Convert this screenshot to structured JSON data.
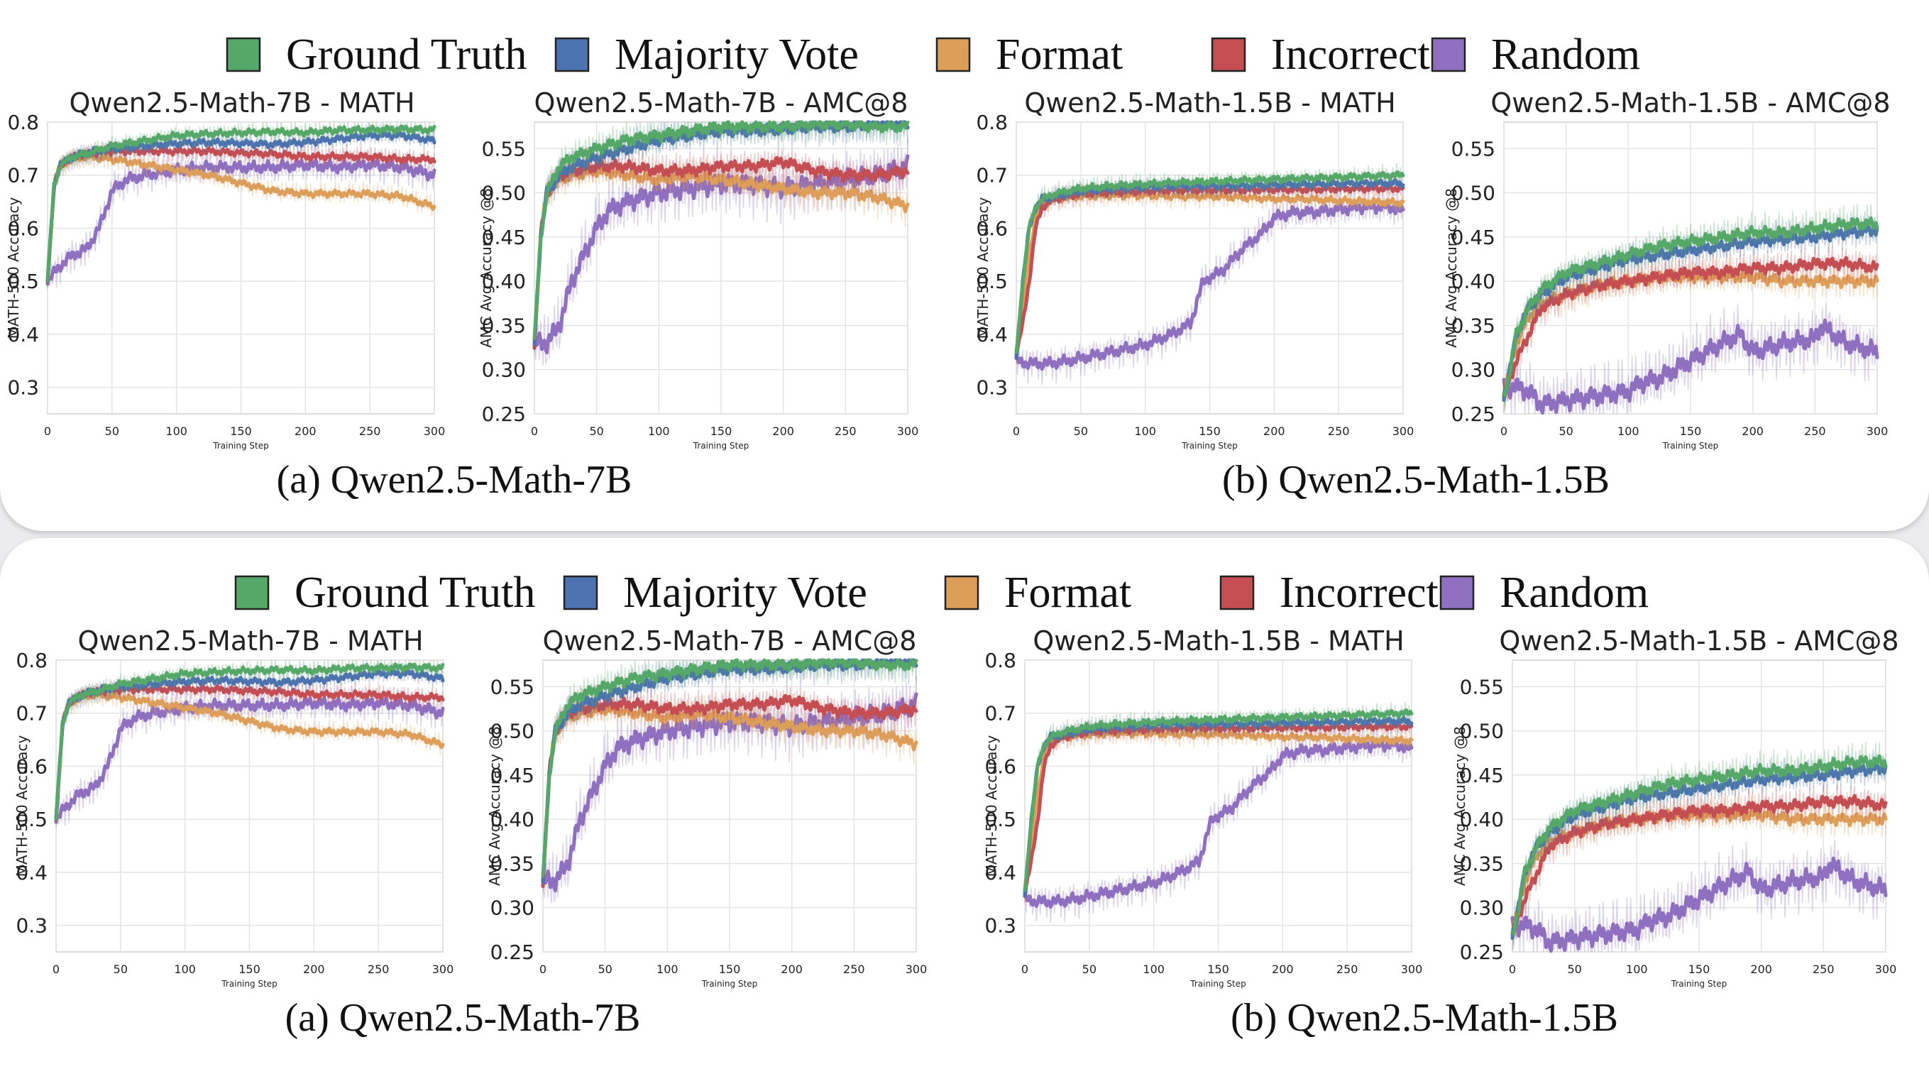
{
  "legend": [
    {
      "label": "Ground Truth",
      "color": "#55a868"
    },
    {
      "label": "Majority Vote",
      "color": "#4c72b0"
    },
    {
      "label": "Format",
      "color": "#dd9e59"
    },
    {
      "label": "Incorrect",
      "color": "#c44e52"
    },
    {
      "label": "Random",
      "color": "#8f6fbf"
    }
  ],
  "x_axis_label": "Training Step",
  "captions": [
    "(a) Qwen2.5-Math-7B",
    "(b) Qwen2.5-Math-1.5B"
  ],
  "chart_data": [
    {
      "type": "line",
      "title": "Qwen2.5-Math-7B - MATH",
      "xlabel": "Training Step",
      "ylabel": "MATH-500 Accuracy",
      "xlim": [
        0,
        300
      ],
      "ylim": [
        0.25,
        0.8
      ],
      "xticks": [
        0,
        50,
        100,
        150,
        200,
        250,
        300
      ],
      "yticks": [
        0.3,
        0.4,
        0.5,
        0.6,
        0.7,
        0.8
      ],
      "ytick_labels": [
        "0.3",
        "0.4",
        "0.5",
        "0.6",
        "0.7",
        "0.8"
      ],
      "grid": true,
      "series": [
        {
          "name": "Ground Truth",
          "x": [
            0,
            5,
            10,
            20,
            30,
            50,
            75,
            100,
            125,
            150,
            175,
            200,
            225,
            250,
            275,
            300
          ],
          "y": [
            0.5,
            0.68,
            0.72,
            0.735,
            0.74,
            0.755,
            0.765,
            0.775,
            0.778,
            0.78,
            0.782,
            0.78,
            0.785,
            0.785,
            0.787,
            0.785
          ]
        },
        {
          "name": "Majority Vote",
          "x": [
            0,
            5,
            10,
            20,
            30,
            50,
            75,
            100,
            125,
            150,
            175,
            200,
            225,
            250,
            275,
            300
          ],
          "y": [
            0.5,
            0.68,
            0.72,
            0.735,
            0.742,
            0.75,
            0.755,
            0.76,
            0.762,
            0.76,
            0.758,
            0.762,
            0.768,
            0.775,
            0.775,
            0.765
          ]
        },
        {
          "name": "Format",
          "x": [
            0,
            5,
            10,
            20,
            30,
            50,
            75,
            100,
            125,
            150,
            175,
            200,
            225,
            250,
            275,
            300
          ],
          "y": [
            0.5,
            0.68,
            0.72,
            0.73,
            0.735,
            0.73,
            0.72,
            0.71,
            0.7,
            0.685,
            0.67,
            0.665,
            0.665,
            0.665,
            0.66,
            0.64
          ]
        },
        {
          "name": "Incorrect",
          "x": [
            0,
            5,
            10,
            20,
            30,
            50,
            75,
            100,
            125,
            150,
            175,
            200,
            225,
            250,
            275,
            300
          ],
          "y": [
            0.5,
            0.68,
            0.72,
            0.735,
            0.74,
            0.745,
            0.745,
            0.745,
            0.745,
            0.742,
            0.74,
            0.735,
            0.735,
            0.735,
            0.73,
            0.73
          ]
        },
        {
          "name": "Random",
          "x": [
            0,
            10,
            20,
            30,
            40,
            50,
            60,
            75,
            100,
            125,
            150,
            175,
            200,
            225,
            250,
            275,
            300
          ],
          "y": [
            0.5,
            0.53,
            0.55,
            0.56,
            0.6,
            0.67,
            0.69,
            0.7,
            0.71,
            0.715,
            0.715,
            0.715,
            0.72,
            0.715,
            0.72,
            0.715,
            0.7
          ]
        }
      ]
    },
    {
      "type": "line",
      "title": "Qwen2.5-Math-7B - AMC@8",
      "xlabel": "Training Step",
      "ylabel": "AMC Avg Accuracy @8",
      "xlim": [
        0,
        300
      ],
      "ylim": [
        0.25,
        0.58
      ],
      "xticks": [
        0,
        50,
        100,
        150,
        200,
        250,
        300
      ],
      "yticks": [
        0.25,
        0.3,
        0.35,
        0.4,
        0.45,
        0.5,
        0.55
      ],
      "ytick_labels": [
        "0.25",
        "0.30",
        "0.35",
        "0.40",
        "0.45",
        "0.50",
        "0.55"
      ],
      "grid": true,
      "series": [
        {
          "name": "Ground Truth",
          "x": [
            0,
            5,
            10,
            20,
            30,
            50,
            75,
            100,
            125,
            150,
            175,
            200,
            225,
            250,
            275,
            300
          ],
          "y": [
            0.33,
            0.45,
            0.5,
            0.53,
            0.54,
            0.55,
            0.56,
            0.565,
            0.57,
            0.575,
            0.575,
            0.575,
            0.578,
            0.578,
            0.575,
            0.575
          ]
        },
        {
          "name": "Majority Vote",
          "x": [
            0,
            5,
            10,
            20,
            30,
            50,
            75,
            100,
            125,
            150,
            175,
            200,
            225,
            250,
            275,
            300
          ],
          "y": [
            0.33,
            0.45,
            0.5,
            0.52,
            0.53,
            0.54,
            0.55,
            0.56,
            0.565,
            0.57,
            0.57,
            0.572,
            0.575,
            0.575,
            0.578,
            0.58
          ]
        },
        {
          "name": "Format",
          "x": [
            0,
            5,
            10,
            20,
            30,
            50,
            75,
            100,
            125,
            150,
            175,
            200,
            225,
            250,
            275,
            300
          ],
          "y": [
            0.33,
            0.45,
            0.5,
            0.515,
            0.52,
            0.525,
            0.52,
            0.515,
            0.52,
            0.515,
            0.51,
            0.505,
            0.5,
            0.5,
            0.495,
            0.485
          ]
        },
        {
          "name": "Incorrect",
          "x": [
            0,
            5,
            10,
            20,
            30,
            50,
            75,
            100,
            125,
            150,
            175,
            200,
            225,
            250,
            275,
            300
          ],
          "y": [
            0.33,
            0.45,
            0.5,
            0.52,
            0.525,
            0.53,
            0.53,
            0.525,
            0.525,
            0.53,
            0.53,
            0.535,
            0.525,
            0.52,
            0.52,
            0.525
          ]
        },
        {
          "name": "Random",
          "x": [
            0,
            10,
            20,
            30,
            40,
            50,
            60,
            75,
            100,
            125,
            150,
            175,
            200,
            225,
            250,
            275,
            300
          ],
          "y": [
            0.33,
            0.33,
            0.35,
            0.4,
            0.43,
            0.46,
            0.48,
            0.49,
            0.5,
            0.505,
            0.51,
            0.51,
            0.505,
            0.51,
            0.515,
            0.52,
            0.53
          ]
        }
      ]
    },
    {
      "type": "line",
      "title": "Qwen2.5-Math-1.5B - MATH",
      "xlabel": "Training Step",
      "ylabel": "MATH-500 Accuracy",
      "xlim": [
        0,
        300
      ],
      "ylim": [
        0.25,
        0.8
      ],
      "xticks": [
        0,
        50,
        100,
        150,
        200,
        250,
        300
      ],
      "yticks": [
        0.3,
        0.4,
        0.5,
        0.6,
        0.7,
        0.8
      ],
      "ytick_labels": [
        "0.3",
        "0.4",
        "0.5",
        "0.6",
        "0.7",
        "0.8"
      ],
      "grid": true,
      "series": [
        {
          "name": "Ground Truth",
          "x": [
            0,
            5,
            10,
            15,
            20,
            30,
            50,
            75,
            100,
            125,
            150,
            175,
            200,
            225,
            250,
            275,
            300
          ],
          "y": [
            0.36,
            0.5,
            0.6,
            0.64,
            0.655,
            0.665,
            0.675,
            0.68,
            0.683,
            0.686,
            0.688,
            0.69,
            0.692,
            0.694,
            0.696,
            0.698,
            0.7
          ]
        },
        {
          "name": "Majority Vote",
          "x": [
            0,
            5,
            10,
            15,
            20,
            30,
            50,
            75,
            100,
            125,
            150,
            175,
            200,
            225,
            250,
            275,
            300
          ],
          "y": [
            0.36,
            0.5,
            0.6,
            0.64,
            0.655,
            0.66,
            0.67,
            0.675,
            0.678,
            0.68,
            0.68,
            0.68,
            0.682,
            0.683,
            0.684,
            0.685,
            0.685
          ]
        },
        {
          "name": "Format",
          "x": [
            0,
            5,
            10,
            15,
            20,
            30,
            50,
            75,
            100,
            125,
            150,
            175,
            200,
            225,
            250,
            275,
            300
          ],
          "y": [
            0.36,
            0.45,
            0.55,
            0.62,
            0.645,
            0.655,
            0.66,
            0.662,
            0.662,
            0.66,
            0.66,
            0.658,
            0.655,
            0.655,
            0.652,
            0.65,
            0.648
          ]
        },
        {
          "name": "Incorrect",
          "x": [
            0,
            5,
            10,
            15,
            20,
            30,
            50,
            75,
            100,
            125,
            150,
            175,
            200,
            225,
            250,
            275,
            300
          ],
          "y": [
            0.36,
            0.42,
            0.5,
            0.6,
            0.64,
            0.655,
            0.665,
            0.668,
            0.67,
            0.672,
            0.672,
            0.672,
            0.673,
            0.673,
            0.674,
            0.675,
            0.675
          ]
        },
        {
          "name": "Random",
          "x": [
            0,
            10,
            25,
            40,
            60,
            80,
            100,
            120,
            135,
            145,
            160,
            175,
            190,
            200,
            215,
            230,
            250,
            270,
            290,
            300
          ],
          "y": [
            0.35,
            0.345,
            0.345,
            0.35,
            0.36,
            0.37,
            0.38,
            0.4,
            0.42,
            0.5,
            0.52,
            0.56,
            0.59,
            0.62,
            0.63,
            0.63,
            0.635,
            0.64,
            0.64,
            0.63
          ]
        }
      ]
    },
    {
      "type": "line",
      "title": "Qwen2.5-Math-1.5B - AMC@8",
      "xlabel": "Training Step",
      "ylabel": "AMC Avg Accuracy @8",
      "xlim": [
        0,
        300
      ],
      "ylim": [
        0.25,
        0.58
      ],
      "xticks": [
        0,
        50,
        100,
        150,
        200,
        250,
        300
      ],
      "yticks": [
        0.25,
        0.3,
        0.35,
        0.4,
        0.45,
        0.5,
        0.55
      ],
      "ytick_labels": [
        "0.25",
        "0.30",
        "0.35",
        "0.40",
        "0.45",
        "0.50",
        "0.55"
      ],
      "grid": true,
      "series": [
        {
          "name": "Ground Truth",
          "x": [
            0,
            5,
            10,
            20,
            30,
            50,
            75,
            100,
            125,
            150,
            175,
            200,
            225,
            250,
            275,
            300
          ],
          "y": [
            0.27,
            0.3,
            0.34,
            0.37,
            0.39,
            0.41,
            0.42,
            0.43,
            0.44,
            0.445,
            0.45,
            0.455,
            0.455,
            0.46,
            0.465,
            0.465
          ]
        },
        {
          "name": "Majority Vote",
          "x": [
            0,
            5,
            10,
            20,
            30,
            50,
            75,
            100,
            125,
            150,
            175,
            200,
            225,
            250,
            275,
            300
          ],
          "y": [
            0.27,
            0.3,
            0.34,
            0.37,
            0.385,
            0.405,
            0.415,
            0.425,
            0.43,
            0.435,
            0.44,
            0.445,
            0.448,
            0.45,
            0.455,
            0.458
          ]
        },
        {
          "name": "Format",
          "x": [
            0,
            5,
            10,
            20,
            30,
            50,
            75,
            100,
            125,
            150,
            175,
            200,
            225,
            250,
            275,
            300
          ],
          "y": [
            0.27,
            0.3,
            0.33,
            0.36,
            0.375,
            0.385,
            0.395,
            0.4,
            0.405,
            0.405,
            0.405,
            0.405,
            0.4,
            0.4,
            0.4,
            0.4
          ]
        },
        {
          "name": "Incorrect",
          "x": [
            0,
            5,
            10,
            20,
            30,
            50,
            75,
            100,
            125,
            150,
            175,
            200,
            225,
            250,
            275,
            300
          ],
          "y": [
            0.27,
            0.29,
            0.31,
            0.34,
            0.37,
            0.385,
            0.395,
            0.4,
            0.405,
            0.41,
            0.41,
            0.415,
            0.415,
            0.42,
            0.42,
            0.415
          ]
        },
        {
          "name": "Random",
          "x": [
            0,
            10,
            20,
            30,
            50,
            75,
            100,
            110,
            125,
            150,
            175,
            190,
            200,
            225,
            250,
            255,
            275,
            300
          ],
          "y": [
            0.28,
            0.28,
            0.275,
            0.26,
            0.265,
            0.27,
            0.275,
            0.285,
            0.29,
            0.31,
            0.33,
            0.34,
            0.32,
            0.33,
            0.335,
            0.35,
            0.33,
            0.32
          ]
        }
      ]
    }
  ]
}
